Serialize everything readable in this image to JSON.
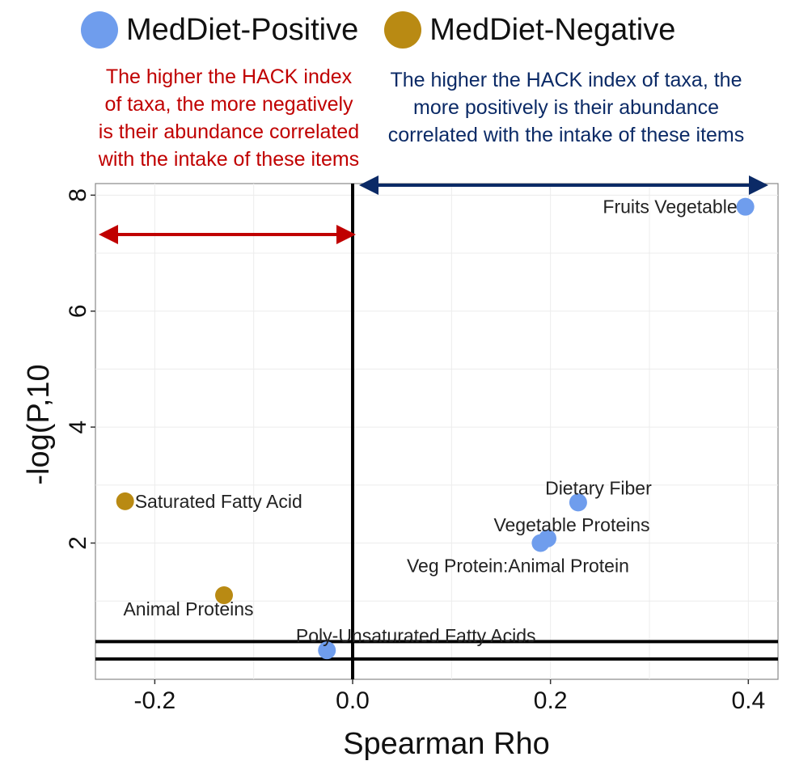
{
  "legend": {
    "positive": {
      "label": "MedDiet-Positive",
      "color": "#6f9ded"
    },
    "negative": {
      "label": "MedDiet-Negative",
      "color": "#b98a13"
    }
  },
  "annotations": {
    "left_text": "The higher the HACK index of taxa, the more negatively is their abundance correlated with the intake of these items",
    "left_color": "#c00000",
    "right_text": "The higher the HACK index of taxa, the more positively is their abundance correlated with the intake of these items",
    "right_color": "#0b2a66"
  },
  "chart_data": {
    "type": "scatter",
    "xlabel": "Spearman Rho",
    "ylabel": "-log(P,10",
    "xlim": [
      -0.26,
      0.43
    ],
    "ylim": [
      -0.35,
      8.2
    ],
    "xticks": [
      -0.2,
      0.0,
      0.2,
      0.4
    ],
    "xtick_labels": [
      "-0.2",
      "0.0",
      "0.2",
      "0.4"
    ],
    "yticks": [
      2,
      4,
      6,
      8
    ],
    "ytick_labels": [
      "2",
      "4",
      "6",
      "8"
    ],
    "grid": true,
    "vertical_line_x": 0.0,
    "horizontal_lines_y": [
      0.0,
      0.3
    ],
    "points": [
      {
        "label": "Fruits Vegetable",
        "x": 0.397,
        "y": 7.8,
        "group": "MedDiet-Positive"
      },
      {
        "label": "Dietary Fiber",
        "x": 0.228,
        "y": 2.7,
        "group": "MedDiet-Positive"
      },
      {
        "label": "Vegetable Proteins",
        "x": 0.197,
        "y": 2.08,
        "group": "MedDiet-Positive"
      },
      {
        "label": "Veg Protein:Animal Protein",
        "x": 0.19,
        "y": 2.0,
        "group": "MedDiet-Positive"
      },
      {
        "label": "Poly-Unsaturated Fatty Acids",
        "x": -0.026,
        "y": 0.15,
        "group": "MedDiet-Positive"
      },
      {
        "label": "Saturated Fatty Acid",
        "x": -0.23,
        "y": 2.72,
        "group": "MedDiet-Negative"
      },
      {
        "label": "Animal Proteins",
        "x": -0.13,
        "y": 1.1,
        "group": "MedDiet-Negative"
      }
    ]
  }
}
